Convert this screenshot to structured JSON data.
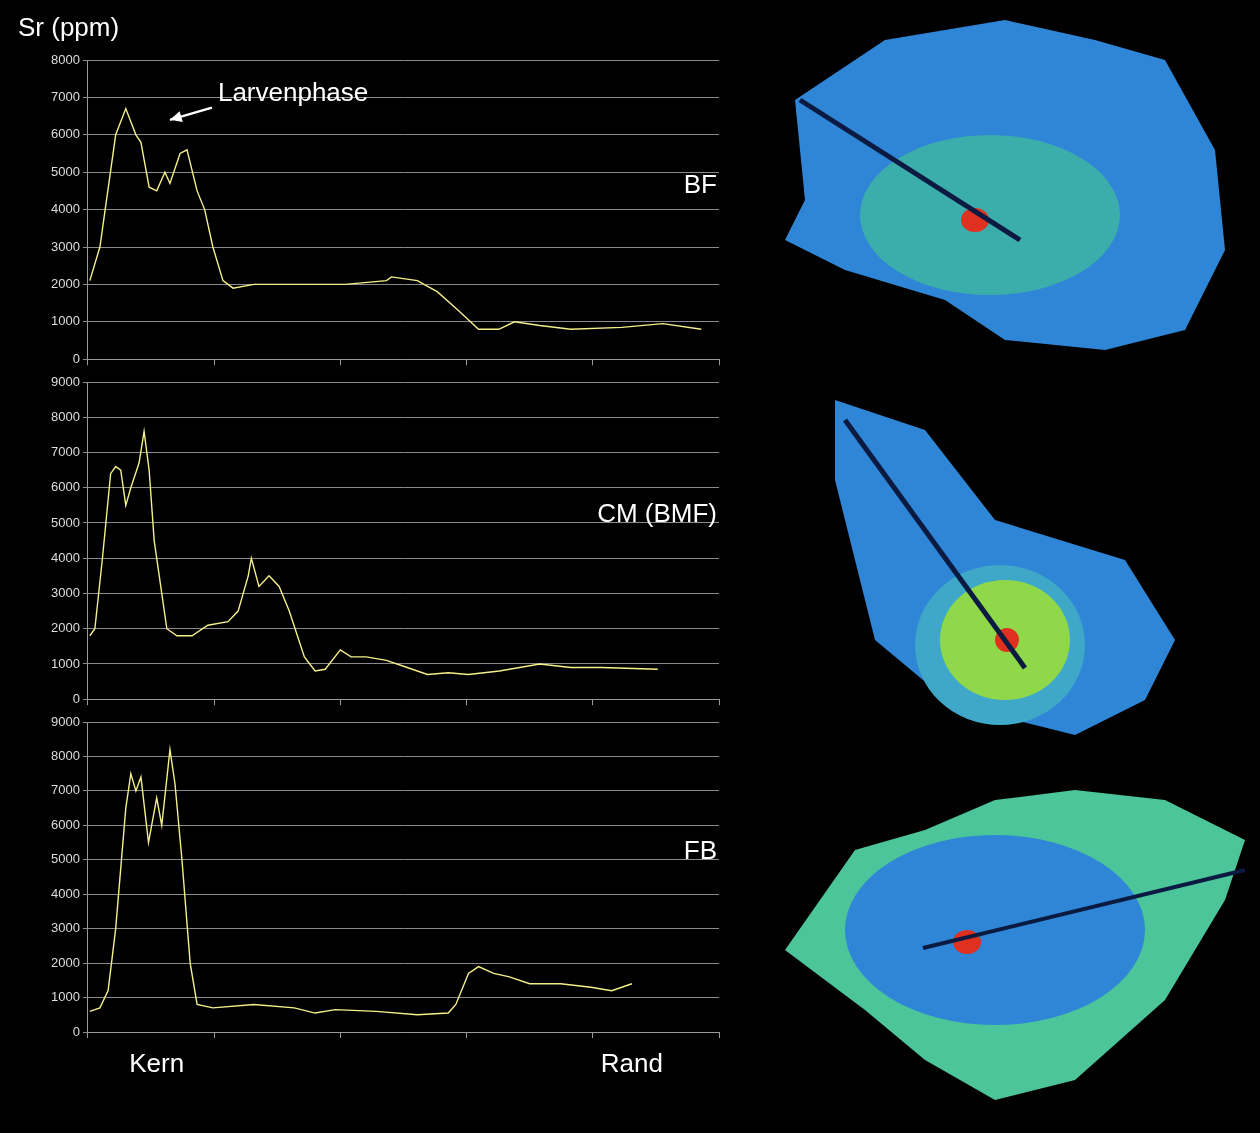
{
  "chart_data": [
    {
      "type": "line",
      "title": "BF",
      "ylabel": "Sr (ppm)",
      "color": "#f5ef8a",
      "marker": "none",
      "x": [
        0.3,
        1.9,
        4.4,
        6.0,
        7.6,
        8.4,
        9.7,
        10.9,
        12.2,
        13.0,
        14.6,
        15.7,
        17.3,
        18.5,
        19.8,
        21.4,
        23.0,
        26.3,
        32.7,
        40.8,
        47.3,
        48.1,
        52.2,
        55.4,
        58.7,
        61.9,
        65.1,
        67.6,
        71.6,
        76.5,
        84.6,
        91.1,
        97.2
      ],
      "values": [
        2100,
        3000,
        6000,
        6700,
        6000,
        5800,
        4600,
        4500,
        5000,
        4700,
        5500,
        5600,
        4500,
        4000,
        3000,
        2100,
        1900,
        2000,
        2000,
        2000,
        2100,
        2200,
        2100,
        1800,
        1300,
        800,
        800,
        1000,
        900,
        800,
        850,
        950,
        800
      ],
      "xlim": [
        0,
        100
      ],
      "xticks": [
        0,
        20,
        40,
        60,
        80,
        100
      ],
      "ylim": [
        0,
        8000
      ],
      "yticks": [
        0,
        1000,
        2000,
        3000,
        4000,
        5000,
        6000,
        7000,
        8000
      ],
      "grid": true,
      "tick_labels": "y",
      "annotations": [
        {
          "text": "Larvenphase",
          "x": 20.6,
          "y": 7100,
          "arrow_to": [
            13.0,
            6400
          ]
        }
      ]
    },
    {
      "type": "line",
      "title": "CM (BMF)",
      "color": "#f5ef8a",
      "marker": "none",
      "x": [
        0.3,
        1.1,
        2.3,
        3.6,
        4.4,
        5.2,
        6.0,
        6.8,
        8.1,
        8.9,
        9.7,
        10.5,
        11.7,
        12.5,
        14.1,
        16.5,
        19.0,
        22.2,
        23.8,
        25.4,
        25.9,
        27.1,
        28.7,
        30.3,
        31.9,
        34.3,
        36.0,
        37.6,
        40.0,
        41.7,
        44.1,
        47.3,
        50.6,
        53.8,
        57.1,
        60.3,
        65.2,
        71.6,
        76.5,
        81.4,
        90.3
      ],
      "values": [
        1800,
        2000,
        4000,
        6400,
        6600,
        6500,
        5500,
        6000,
        6700,
        7600,
        6500,
        4500,
        3000,
        2000,
        1800,
        1800,
        2100,
        2200,
        2500,
        3500,
        4000,
        3200,
        3500,
        3200,
        2500,
        1200,
        800,
        850,
        1400,
        1200,
        1200,
        1100,
        900,
        700,
        750,
        700,
        800,
        1000,
        900,
        900,
        850
      ],
      "xlim": [
        0,
        100
      ],
      "xticks": [
        0,
        20,
        40,
        60,
        80,
        100
      ],
      "ylim": [
        0,
        9000
      ],
      "yticks": [
        0,
        1000,
        2000,
        3000,
        4000,
        5000,
        6000,
        7000,
        8000,
        9000
      ],
      "grid": true,
      "tick_labels": "y"
    },
    {
      "type": "line",
      "title": "FB",
      "color": "#f5ef8a",
      "marker": "none",
      "x": [
        0.3,
        1.9,
        3.2,
        4.4,
        6.0,
        6.8,
        7.6,
        8.4,
        9.6,
        10.9,
        11.7,
        13.0,
        13.8,
        14.9,
        16.2,
        17.3,
        19.8,
        26.3,
        32.7,
        36.0,
        39.2,
        45.7,
        52.2,
        57.1,
        58.3,
        60.3,
        61.9,
        64.3,
        66.8,
        70.0,
        74.9,
        79.7,
        83.0,
        86.2
      ],
      "values": [
        600,
        700,
        1200,
        3000,
        6500,
        7500,
        7000,
        7400,
        5500,
        6800,
        6000,
        8200,
        7200,
        5000,
        2000,
        800,
        700,
        800,
        700,
        550,
        650,
        600,
        500,
        550,
        800,
        1700,
        1900,
        1700,
        1600,
        1400,
        1400,
        1300,
        1200,
        1400
      ],
      "xlim": [
        0,
        100
      ],
      "xticks": [
        0,
        20,
        40,
        60,
        80,
        100
      ],
      "ylim": [
        0,
        9000
      ],
      "yticks": [
        0,
        1000,
        2000,
        3000,
        4000,
        5000,
        6000,
        7000,
        8000,
        9000
      ],
      "grid": true,
      "tick_labels": "y",
      "annotations": [
        {
          "text": "Kern",
          "x": 10.9
        },
        {
          "text": "Rand",
          "x": 86.2
        }
      ]
    }
  ]
}
